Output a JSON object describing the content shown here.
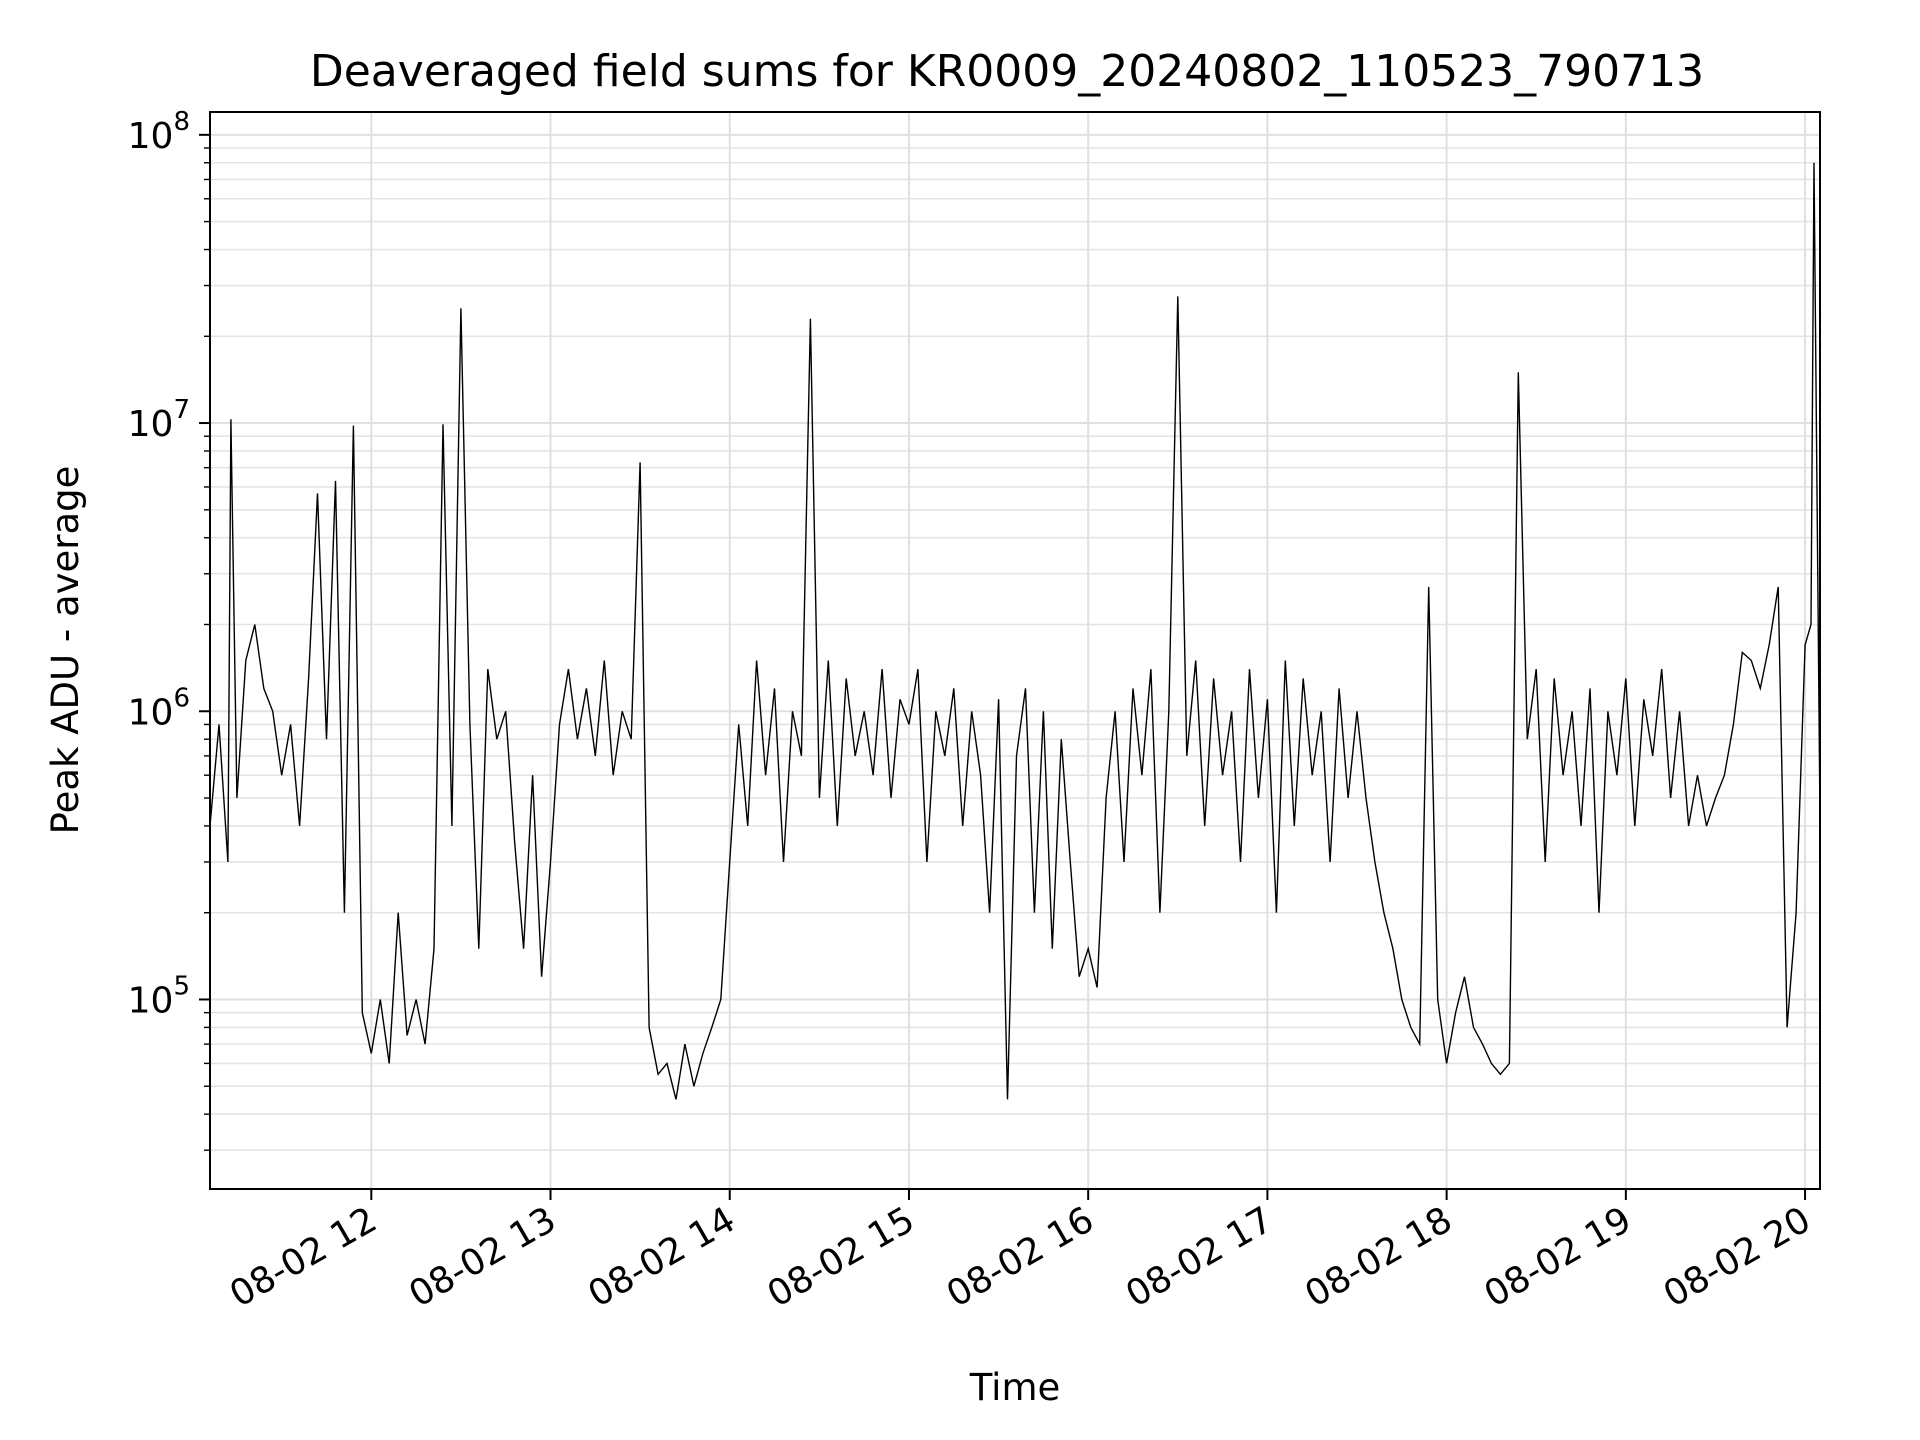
{
  "chart_data": {
    "type": "line",
    "title": "Deaveraged field sums for KR0009_20240802_110523_790713",
    "xlabel": "Time",
    "ylabel": "Peak ADU - average",
    "yscale": "log",
    "ylim": [
      22000,
      120000000
    ],
    "xlim": [
      "2024-08-02 11:06",
      "2024-08-02 20:05"
    ],
    "grid": true,
    "line_color": "#000000",
    "x_ticks": [
      {
        "value": "2024-08-02 12:00",
        "label": "08-02 12"
      },
      {
        "value": "2024-08-02 13:00",
        "label": "08-02 13"
      },
      {
        "value": "2024-08-02 14:00",
        "label": "08-02 14"
      },
      {
        "value": "2024-08-02 15:00",
        "label": "08-02 15"
      },
      {
        "value": "2024-08-02 16:00",
        "label": "08-02 16"
      },
      {
        "value": "2024-08-02 17:00",
        "label": "08-02 17"
      },
      {
        "value": "2024-08-02 18:00",
        "label": "08-02 18"
      },
      {
        "value": "2024-08-02 19:00",
        "label": "08-02 19"
      },
      {
        "value": "2024-08-02 20:00",
        "label": "08-02 20"
      }
    ],
    "y_ticks": [
      {
        "value": 100000,
        "base": "10",
        "exponent": "5"
      },
      {
        "value": 1000000,
        "base": "10",
        "exponent": "6"
      },
      {
        "value": 10000000,
        "base": "10",
        "exponent": "7"
      },
      {
        "value": 100000000,
        "base": "10",
        "exponent": "8"
      }
    ],
    "x": [
      "2024-08-02 11:06",
      "2024-08-02 11:09",
      "2024-08-02 11:12",
      "2024-08-02 11:13",
      "2024-08-02 11:15",
      "2024-08-02 11:18",
      "2024-08-02 11:21",
      "2024-08-02 11:24",
      "2024-08-02 11:27",
      "2024-08-02 11:30",
      "2024-08-02 11:33",
      "2024-08-02 11:36",
      "2024-08-02 11:39",
      "2024-08-02 11:42",
      "2024-08-02 11:45",
      "2024-08-02 11:48",
      "2024-08-02 11:51",
      "2024-08-02 11:54",
      "2024-08-02 11:57",
      "2024-08-02 12:00",
      "2024-08-02 12:03",
      "2024-08-02 12:06",
      "2024-08-02 12:09",
      "2024-08-02 12:12",
      "2024-08-02 12:15",
      "2024-08-02 12:18",
      "2024-08-02 12:21",
      "2024-08-02 12:24",
      "2024-08-02 12:27",
      "2024-08-02 12:30",
      "2024-08-02 12:33",
      "2024-08-02 12:36",
      "2024-08-02 12:39",
      "2024-08-02 12:42",
      "2024-08-02 12:45",
      "2024-08-02 12:48",
      "2024-08-02 12:51",
      "2024-08-02 12:54",
      "2024-08-02 12:57",
      "2024-08-02 13:00",
      "2024-08-02 13:03",
      "2024-08-02 13:06",
      "2024-08-02 13:09",
      "2024-08-02 13:12",
      "2024-08-02 13:15",
      "2024-08-02 13:18",
      "2024-08-02 13:21",
      "2024-08-02 13:24",
      "2024-08-02 13:27",
      "2024-08-02 13:30",
      "2024-08-02 13:33",
      "2024-08-02 13:36",
      "2024-08-02 13:39",
      "2024-08-02 13:42",
      "2024-08-02 13:45",
      "2024-08-02 13:48",
      "2024-08-02 13:51",
      "2024-08-02 13:54",
      "2024-08-02 13:57",
      "2024-08-02 14:00",
      "2024-08-02 14:03",
      "2024-08-02 14:06",
      "2024-08-02 14:09",
      "2024-08-02 14:12",
      "2024-08-02 14:15",
      "2024-08-02 14:18",
      "2024-08-02 14:21",
      "2024-08-02 14:24",
      "2024-08-02 14:27",
      "2024-08-02 14:30",
      "2024-08-02 14:33",
      "2024-08-02 14:36",
      "2024-08-02 14:39",
      "2024-08-02 14:42",
      "2024-08-02 14:45",
      "2024-08-02 14:48",
      "2024-08-02 14:51",
      "2024-08-02 14:54",
      "2024-08-02 14:57",
      "2024-08-02 15:00",
      "2024-08-02 15:03",
      "2024-08-02 15:06",
      "2024-08-02 15:09",
      "2024-08-02 15:12",
      "2024-08-02 15:15",
      "2024-08-02 15:18",
      "2024-08-02 15:21",
      "2024-08-02 15:24",
      "2024-08-02 15:27",
      "2024-08-02 15:30",
      "2024-08-02 15:33",
      "2024-08-02 15:36",
      "2024-08-02 15:39",
      "2024-08-02 15:42",
      "2024-08-02 15:45",
      "2024-08-02 15:48",
      "2024-08-02 15:51",
      "2024-08-02 15:54",
      "2024-08-02 15:57",
      "2024-08-02 16:00",
      "2024-08-02 16:03",
      "2024-08-02 16:06",
      "2024-08-02 16:09",
      "2024-08-02 16:12",
      "2024-08-02 16:15",
      "2024-08-02 16:18",
      "2024-08-02 16:21",
      "2024-08-02 16:24",
      "2024-08-02 16:27",
      "2024-08-02 16:30",
      "2024-08-02 16:33",
      "2024-08-02 16:36",
      "2024-08-02 16:39",
      "2024-08-02 16:42",
      "2024-08-02 16:45",
      "2024-08-02 16:48",
      "2024-08-02 16:51",
      "2024-08-02 16:54",
      "2024-08-02 16:57",
      "2024-08-02 17:00",
      "2024-08-02 17:03",
      "2024-08-02 17:06",
      "2024-08-02 17:09",
      "2024-08-02 17:12",
      "2024-08-02 17:15",
      "2024-08-02 17:18",
      "2024-08-02 17:21",
      "2024-08-02 17:24",
      "2024-08-02 17:27",
      "2024-08-02 17:30",
      "2024-08-02 17:33",
      "2024-08-02 17:36",
      "2024-08-02 17:39",
      "2024-08-02 17:42",
      "2024-08-02 17:45",
      "2024-08-02 17:48",
      "2024-08-02 17:51",
      "2024-08-02 17:54",
      "2024-08-02 17:57",
      "2024-08-02 18:00",
      "2024-08-02 18:03",
      "2024-08-02 18:06",
      "2024-08-02 18:09",
      "2024-08-02 18:12",
      "2024-08-02 18:15",
      "2024-08-02 18:18",
      "2024-08-02 18:21",
      "2024-08-02 18:24",
      "2024-08-02 18:27",
      "2024-08-02 18:30",
      "2024-08-02 18:33",
      "2024-08-02 18:36",
      "2024-08-02 18:39",
      "2024-08-02 18:42",
      "2024-08-02 18:45",
      "2024-08-02 18:48",
      "2024-08-02 18:51",
      "2024-08-02 18:54",
      "2024-08-02 18:57",
      "2024-08-02 19:00",
      "2024-08-02 19:03",
      "2024-08-02 19:06",
      "2024-08-02 19:09",
      "2024-08-02 19:12",
      "2024-08-02 19:15",
      "2024-08-02 19:18",
      "2024-08-02 19:21",
      "2024-08-02 19:24",
      "2024-08-02 19:27",
      "2024-08-02 19:30",
      "2024-08-02 19:33",
      "2024-08-02 19:36",
      "2024-08-02 19:39",
      "2024-08-02 19:42",
      "2024-08-02 19:45",
      "2024-08-02 19:48",
      "2024-08-02 19:51",
      "2024-08-02 19:54",
      "2024-08-02 19:57",
      "2024-08-02 20:00",
      "2024-08-02 20:02",
      "2024-08-02 20:03",
      "2024-08-02 20:05"
    ],
    "y": [
      400000,
      900000,
      300000,
      10300000,
      500000,
      1500000,
      2000000,
      1200000,
      1000000,
      600000,
      900000,
      400000,
      1300000,
      5700000,
      800000,
      6300000,
      200000,
      9800000,
      90000,
      65000,
      100000,
      60000,
      200000,
      75000,
      100000,
      70000,
      150000,
      9900000,
      400000,
      25000000,
      900000,
      150000,
      1400000,
      800000,
      1000000,
      350000,
      150000,
      600000,
      120000,
      300000,
      900000,
      1400000,
      800000,
      1200000,
      700000,
      1500000,
      600000,
      1000000,
      800000,
      7300000,
      80000,
      55000,
      60000,
      45000,
      70000,
      50000,
      65000,
      80000,
      100000,
      300000,
      900000,
      400000,
      1500000,
      600000,
      1200000,
      300000,
      1000000,
      700000,
      23000000,
      500000,
      1500000,
      400000,
      1300000,
      700000,
      1000000,
      600000,
      1400000,
      500000,
      1100000,
      900000,
      1400000,
      300000,
      1000000,
      700000,
      1200000,
      400000,
      1000000,
      600000,
      200000,
      1100000,
      45000,
      700000,
      1200000,
      200000,
      1000000,
      150000,
      800000,
      300000,
      120000,
      150000,
      110000,
      500000,
      1000000,
      300000,
      1200000,
      600000,
      1400000,
      200000,
      1000000,
      27500000,
      700000,
      1500000,
      400000,
      1300000,
      600000,
      1000000,
      300000,
      1400000,
      500000,
      1100000,
      200000,
      1500000,
      400000,
      1300000,
      600000,
      1000000,
      300000,
      1200000,
      500000,
      1000000,
      500000,
      300000,
      200000,
      150000,
      100000,
      80000,
      70000,
      2700000,
      100000,
      60000,
      90000,
      120000,
      80000,
      70000,
      60000,
      55000,
      60000,
      15000000,
      800000,
      1400000,
      300000,
      1300000,
      600000,
      1000000,
      400000,
      1200000,
      200000,
      1000000,
      600000,
      1300000,
      400000,
      1100000,
      700000,
      1400000,
      500000,
      1000000,
      400000,
      600000,
      400000,
      500000,
      600000,
      900000,
      1600000,
      1500000,
      1200000,
      1700000,
      2700000,
      80000,
      200000,
      1700000,
      2000000,
      80000000,
      420000
    ]
  }
}
